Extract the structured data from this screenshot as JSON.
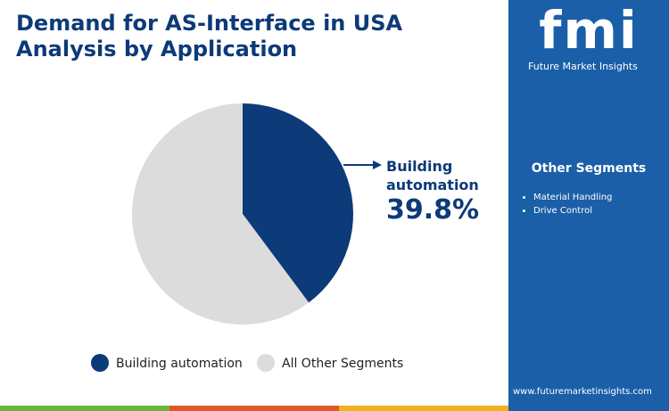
{
  "chart_data": {
    "type": "pie",
    "title": "Demand for AS-Interface in USA Analysis by Application",
    "categories": [
      "Building automation",
      "All Other Segments"
    ],
    "values": [
      39.8,
      60.2
    ],
    "value_labels": [
      "39.8%",
      null
    ],
    "colors": [
      "#0d3a78",
      "#dcdcdc"
    ],
    "legend": "bottom"
  },
  "brand": {
    "logo": "fmi",
    "name": "Future Market Insights"
  },
  "other_segments": {
    "title": "Other Segments",
    "items": [
      "Material Handling",
      "Drive Control"
    ]
  },
  "website": "www.futuremarketinsights.com"
}
